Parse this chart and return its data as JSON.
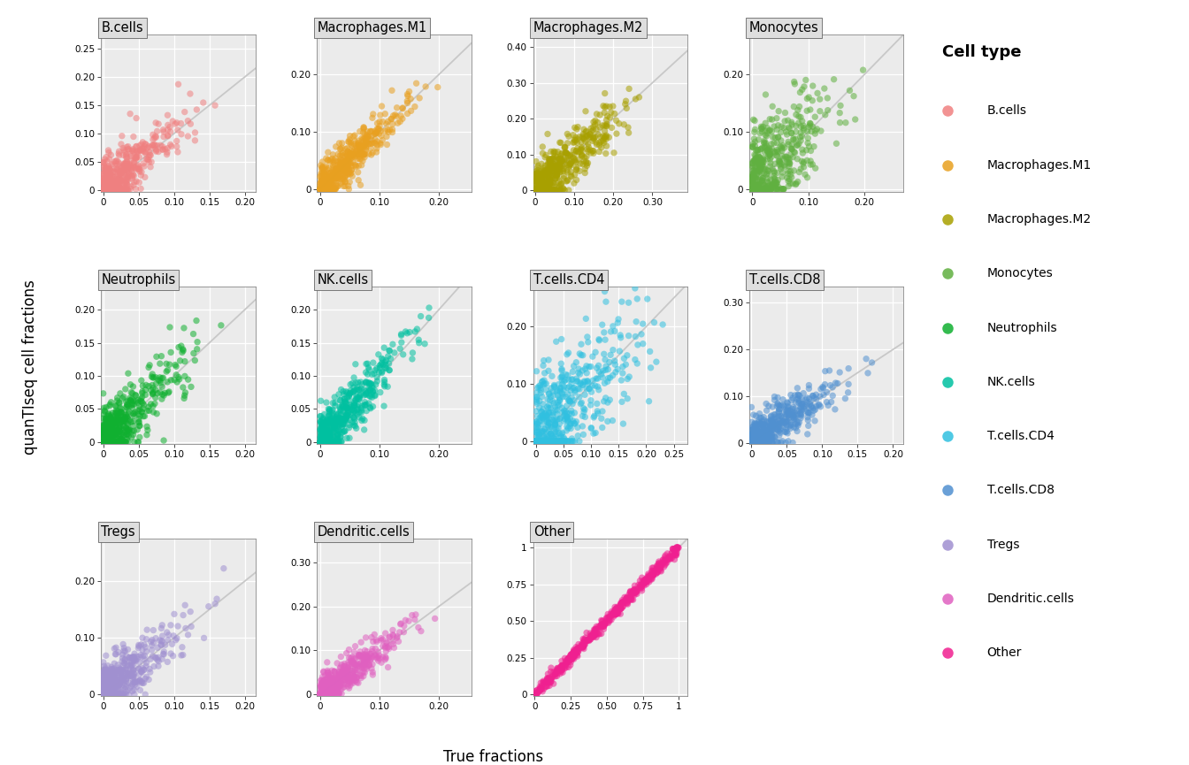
{
  "cell_types": [
    "B.cells",
    "Macrophages.M1",
    "Macrophages.M2",
    "Monocytes",
    "Neutrophils",
    "NK.cells",
    "T.cells.CD4",
    "T.cells.CD8",
    "Tregs",
    "Dendritic.cells",
    "Other"
  ],
  "colors": {
    "B.cells": "#F08080",
    "Macrophages.M1": "#E8A020",
    "Macrophages.M2": "#A8A000",
    "Monocytes": "#60B040",
    "Neutrophils": "#10B030",
    "NK.cells": "#00C0A0",
    "T.cells.CD4": "#30C0E0",
    "T.cells.CD8": "#5090D0",
    "Tregs": "#A090D0",
    "Dendritic.cells": "#E060C0",
    "Other": "#F02090"
  },
  "xlims": {
    "B.cells": [
      -0.003,
      0.215
    ],
    "Macrophages.M1": [
      -0.005,
      0.255
    ],
    "Macrophages.M2": [
      -0.005,
      0.39
    ],
    "Monocytes": [
      -0.005,
      0.27
    ],
    "Neutrophils": [
      -0.003,
      0.215
    ],
    "NK.cells": [
      -0.005,
      0.255
    ],
    "T.cells.CD4": [
      -0.005,
      0.275
    ],
    "T.cells.CD8": [
      -0.003,
      0.215
    ],
    "Tregs": [
      -0.003,
      0.215
    ],
    "Dendritic.cells": [
      -0.005,
      0.255
    ],
    "Other": [
      -0.01,
      1.06
    ]
  },
  "ylims": {
    "B.cells": [
      -0.003,
      0.275
    ],
    "Macrophages.M1": [
      -0.005,
      0.27
    ],
    "Macrophages.M2": [
      -0.005,
      0.435
    ],
    "Monocytes": [
      -0.005,
      0.27
    ],
    "Neutrophils": [
      -0.003,
      0.235
    ],
    "NK.cells": [
      -0.003,
      0.235
    ],
    "T.cells.CD4": [
      -0.005,
      0.27
    ],
    "T.cells.CD8": [
      -0.003,
      0.335
    ],
    "Tregs": [
      -0.003,
      0.275
    ],
    "Dendritic.cells": [
      -0.005,
      0.355
    ],
    "Other": [
      -0.01,
      1.06
    ]
  },
  "xticks": {
    "B.cells": [
      0.0,
      0.05,
      0.1,
      0.15,
      0.2
    ],
    "Macrophages.M1": [
      0.0,
      0.1,
      0.2
    ],
    "Macrophages.M2": [
      0.0,
      0.1,
      0.2,
      0.3
    ],
    "Monocytes": [
      0.0,
      0.1,
      0.2
    ],
    "Neutrophils": [
      0.0,
      0.05,
      0.1,
      0.15,
      0.2
    ],
    "NK.cells": [
      0.0,
      0.1,
      0.2
    ],
    "T.cells.CD4": [
      0.0,
      0.05,
      0.1,
      0.15,
      0.2,
      0.25
    ],
    "T.cells.CD8": [
      0.0,
      0.05,
      0.1,
      0.15,
      0.2
    ],
    "Tregs": [
      0.0,
      0.05,
      0.1,
      0.15,
      0.2
    ],
    "Dendritic.cells": [
      0.0,
      0.1,
      0.2
    ],
    "Other": [
      0.0,
      0.25,
      0.5,
      0.75,
      1.0
    ]
  },
  "yticks": {
    "B.cells": [
      0.0,
      0.05,
      0.1,
      0.15,
      0.2,
      0.25
    ],
    "Macrophages.M1": [
      0.0,
      0.1,
      0.2
    ],
    "Macrophages.M2": [
      0.0,
      0.1,
      0.2,
      0.3,
      0.4
    ],
    "Monocytes": [
      0.0,
      0.1,
      0.2
    ],
    "Neutrophils": [
      0.0,
      0.05,
      0.1,
      0.15,
      0.2
    ],
    "NK.cells": [
      0.0,
      0.05,
      0.1,
      0.15,
      0.2
    ],
    "T.cells.CD4": [
      0.0,
      0.1,
      0.2
    ],
    "T.cells.CD8": [
      0.0,
      0.1,
      0.2,
      0.3
    ],
    "Tregs": [
      0.0,
      0.1,
      0.2
    ],
    "Dendritic.cells": [
      0.0,
      0.1,
      0.2,
      0.3
    ],
    "Other": [
      0.0,
      0.25,
      0.5,
      0.75,
      1.0
    ]
  },
  "n_points": 500,
  "alpha": 0.55,
  "point_size": 28,
  "identity_line_color": "#C8C8C8",
  "background_color": "#FFFFFF",
  "panel_bg_color": "#EBEBEB",
  "grid_color": "#FFFFFF",
  "title_fontsize": 10.5,
  "label_fontsize": 12,
  "legend_title": "Cell type",
  "xlabel": "True fractions",
  "ylabel": "quanTIseq cell fractions",
  "layout": [
    [
      "B.cells",
      "Macrophages.M1",
      "Macrophages.M2",
      "Monocytes"
    ],
    [
      "Neutrophils",
      "NK.cells",
      "T.cells.CD4",
      "T.cells.CD8"
    ],
    [
      "Tregs",
      "Dendritic.cells",
      "Other",
      null
    ]
  ]
}
